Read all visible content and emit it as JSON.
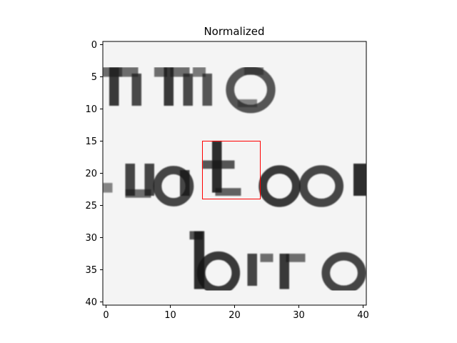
{
  "chart_data": {
    "type": "heatmap",
    "title": "Normalized",
    "xlabel": "",
    "ylabel": "",
    "xlim": [
      -0.5,
      40.5
    ],
    "ylim": [
      40.5,
      -0.5
    ],
    "y_inverted": true,
    "grid": false,
    "colormap": "gray",
    "xticks": [
      0,
      10,
      20,
      30,
      40
    ],
    "yticks": [
      0,
      5,
      10,
      15,
      20,
      25,
      30,
      35,
      40
    ],
    "highlight_box": {
      "x0": 15,
      "y0": 15,
      "x1": 24,
      "y1": 24,
      "color": "#ff0000"
    },
    "content": "grayscale image patch of printed text showing fragments \"ms\", \"utor\" and \"bro\""
  },
  "colors": {
    "background": "#ffffff",
    "axes": "#000000",
    "highlight": "#ff0000",
    "ink": "#111111",
    "paper": "#f4f4f4"
  }
}
